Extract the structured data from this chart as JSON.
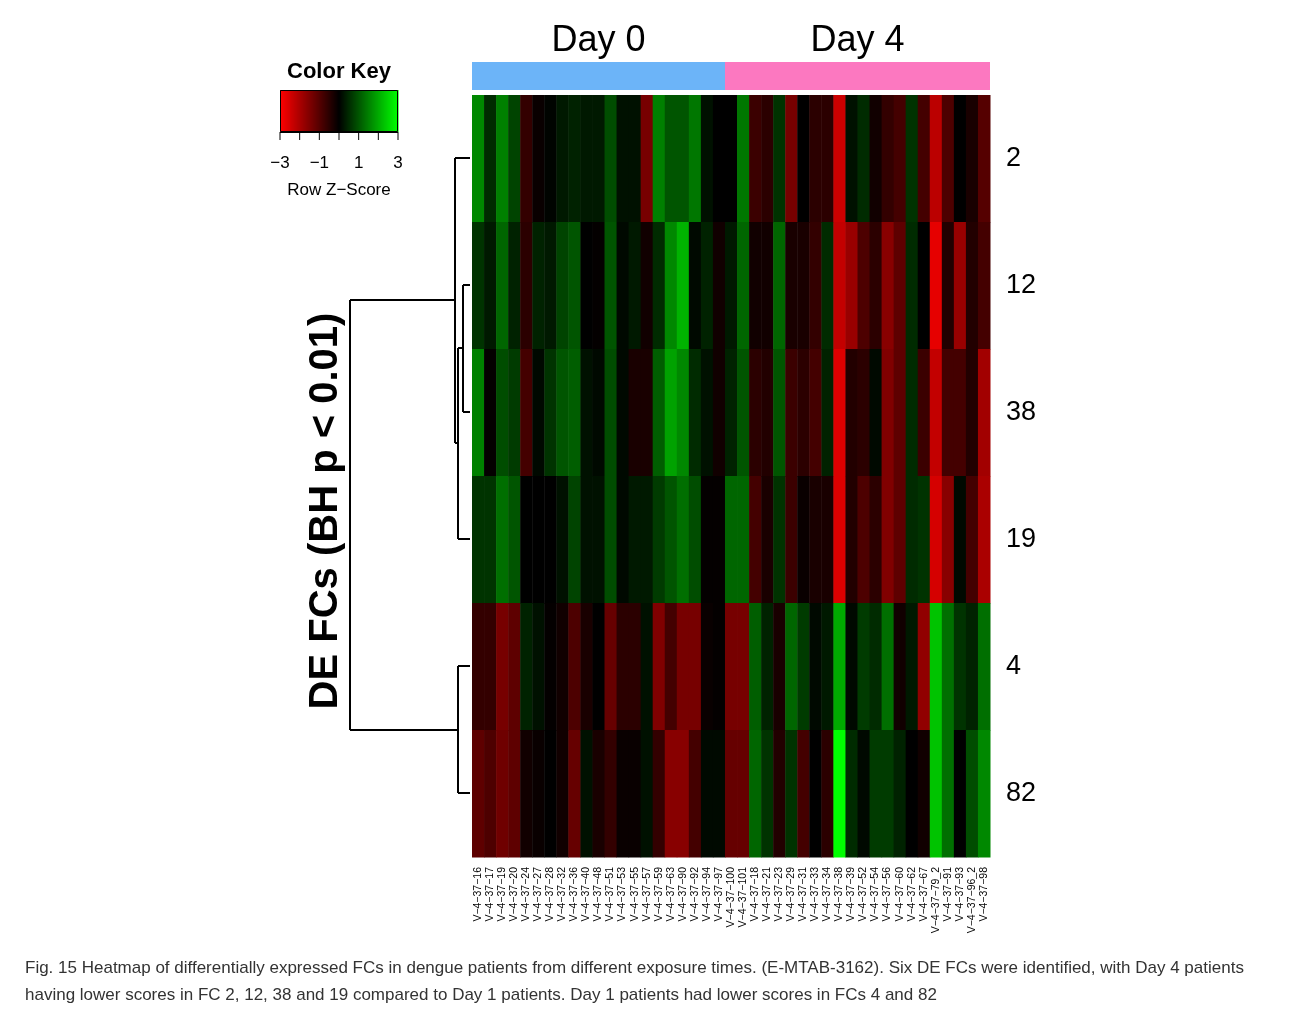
{
  "chart_data": {
    "type": "heatmap",
    "ylabel": "DE FCs (BH p < 0.01)",
    "legend_title": "Color Key",
    "clabel": "Row Z−Score",
    "categories": [
      "V−4−37−16",
      "V−4−37−17",
      "V−4−37−19",
      "V−4−37−20",
      "V−4−37−24",
      "V−4−37−27",
      "V−4−37−28",
      "V−4−37−32",
      "V−4−37−36",
      "V−4−37−40",
      "V−4−37−48",
      "V−4−37−51",
      "V−4−37−53",
      "V−4−37−55",
      "V−4−37−57",
      "V−4−37−59",
      "V−4−37−63",
      "V−4−37−90",
      "V−4−37−92",
      "V−4−37−94",
      "V−4−37−97",
      "V−4−37−100",
      "V−4−37−101",
      "V−4−37−18",
      "V−4−37−21",
      "V−4−37−23",
      "V−4−37−29",
      "V−4−37−31",
      "V−4−37−33",
      "V−4−37−34",
      "V−4−37−38",
      "V−4−37−39",
      "V−4−37−52",
      "V−4−37−54",
      "V−4−37−56",
      "V−4−37−60",
      "V−4−37−62",
      "V−4−37−67",
      "V−4−37−79_2",
      "V−4−37−91",
      "V−4−37−93",
      "V−4−37−96_2",
      "V−4−37−98"
    ],
    "y_categories": [
      "2",
      "12",
      "38",
      "19",
      "4",
      "82"
    ],
    "cells": [
      [
        1.6,
        0.5,
        1.5,
        0.8,
        -0.6,
        -0.1,
        0.05,
        0.3,
        0.4,
        0.3,
        0.3,
        0.9,
        0.2,
        0.2,
        -1.4,
        1.5,
        1.0,
        1.0,
        1.4,
        0.2,
        0.0,
        0.0,
        1.4,
        -0.7,
        -0.5,
        0.6,
        -1.4,
        0.0,
        -0.5,
        -0.5,
        -2.4,
        0.2,
        0.5,
        -0.2,
        -0.6,
        -0.8,
        0.6,
        -0.8,
        -2.2,
        -0.9,
        0.0,
        -0.3,
        -1.0
      ],
      [
        0.6,
        0.3,
        1.2,
        0.4,
        -0.5,
        0.4,
        0.3,
        0.8,
        1.0,
        0.0,
        -0.05,
        1.0,
        0.1,
        0.3,
        -0.2,
        0.5,
        1.6,
        2.1,
        0.1,
        0.4,
        -0.2,
        0.3,
        1.2,
        -0.2,
        -0.2,
        1.2,
        -0.3,
        -0.3,
        -0.6,
        0.5,
        -2.3,
        -1.8,
        -0.9,
        -0.5,
        -1.6,
        -1.1,
        0.5,
        0.0,
        -2.7,
        -0.4,
        -1.8,
        -0.4,
        -0.8
      ],
      [
        1.5,
        -0.05,
        0.9,
        0.7,
        -0.8,
        0.1,
        0.6,
        1.0,
        1.1,
        0.2,
        0.1,
        0.9,
        0.1,
        -0.3,
        -0.3,
        1.1,
        1.9,
        1.6,
        0.5,
        0.2,
        -0.2,
        0.4,
        1.0,
        -0.5,
        -0.4,
        1.0,
        -0.7,
        -0.5,
        -0.8,
        0.4,
        -2.6,
        -0.4,
        -0.5,
        0.1,
        -1.5,
        -1.1,
        0.5,
        -0.7,
        -2.3,
        -0.8,
        -0.8,
        -0.4,
        -1.9
      ],
      [
        0.6,
        0.6,
        1.3,
        1.0,
        0.0,
        0.0,
        0.0,
        0.2,
        0.8,
        0.2,
        0.2,
        0.9,
        0.1,
        0.3,
        0.3,
        0.7,
        1.0,
        1.3,
        0.9,
        -0.05,
        -0.05,
        1.2,
        1.2,
        -0.8,
        -0.3,
        0.6,
        -0.7,
        -0.1,
        -0.3,
        -0.3,
        -2.6,
        -0.4,
        -0.9,
        -0.5,
        -1.5,
        -1.1,
        0.5,
        0.6,
        -2.5,
        -1.6,
        0.1,
        -0.8,
        -2.0
      ],
      [
        -0.6,
        -0.6,
        -1.4,
        -1.1,
        0.4,
        0.2,
        -0.05,
        -0.2,
        -0.9,
        -0.3,
        0.0,
        -1.2,
        -0.5,
        -0.5,
        0.2,
        -1.5,
        -0.8,
        -1.4,
        -1.4,
        -0.1,
        -0.05,
        -1.4,
        -1.4,
        1.1,
        0.4,
        -0.3,
        1.2,
        0.7,
        0.1,
        0.3,
        2.0,
        0.1,
        0.7,
        0.5,
        1.3,
        -0.2,
        0.3,
        -1.7,
        2.3,
        1.3,
        0.6,
        0.4,
        1.3
      ],
      [
        -1.1,
        -0.9,
        -1.3,
        -1.1,
        -0.2,
        -0.1,
        0.0,
        -0.2,
        -1.2,
        0.2,
        -0.3,
        -0.6,
        -0.1,
        -0.1,
        0.2,
        -0.6,
        -1.6,
        -1.6,
        -0.8,
        0.1,
        0.1,
        -1.2,
        -1.2,
        1.2,
        0.6,
        -0.4,
        0.6,
        -0.8,
        0.0,
        -0.5,
        3.0,
        0.5,
        0.1,
        0.7,
        0.7,
        0.4,
        0.0,
        -0.2,
        2.3,
        1.3,
        0.0,
        0.9,
        1.6
      ]
    ],
    "clim": [
      -3,
      3
    ],
    "cticks": [
      -3,
      {
        "value": -2,
        "label": null
      },
      -1,
      {
        "value": 0,
        "label": null
      },
      1,
      {
        "value": 2,
        "label": null
      },
      3
    ],
    "annotations": [
      "Day 0",
      "Day 4",
      "Fig. 15 Heatmap of differentially expressed FCs in dengue patients from different exposure times. (E-MTAB-3162). Six DE FCs were identified, with Day 4 patients having lower scores in FC 2, 12, 38 and 19 compared to Day 1 patients. Day 1 patients had lower scores in FCs 4 and 82"
    ]
  }
}
